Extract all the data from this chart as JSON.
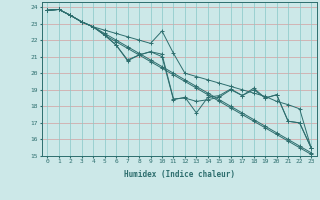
{
  "xlabel": "Humidex (Indice chaleur)",
  "xlim": [
    -0.5,
    23.5
  ],
  "ylim": [
    15,
    24.3
  ],
  "yticks": [
    15,
    16,
    17,
    18,
    19,
    20,
    21,
    22,
    23,
    24
  ],
  "xticks": [
    0,
    1,
    2,
    3,
    4,
    5,
    6,
    7,
    8,
    9,
    10,
    11,
    12,
    13,
    14,
    15,
    16,
    17,
    18,
    19,
    20,
    21,
    22,
    23
  ],
  "bg_color": "#cce8e8",
  "line_color": "#2d6e6e",
  "grid_color_h": "#d4a0a0",
  "grid_color_v": "#88c8c8",
  "series": [
    {
      "x": [
        0,
        1,
        2,
        3,
        4,
        5,
        6,
        7,
        8,
        9,
        10,
        11,
        12,
        13,
        14,
        15,
        16,
        17,
        18,
        19,
        20,
        21,
        22,
        23
      ],
      "y": [
        23.8,
        23.85,
        23.5,
        23.1,
        22.8,
        22.6,
        22.4,
        22.2,
        22.0,
        21.8,
        22.55,
        21.2,
        20.0,
        19.8,
        19.6,
        19.4,
        19.2,
        19.0,
        18.8,
        18.6,
        18.3,
        18.1,
        17.85,
        15.5
      ]
    },
    {
      "x": [
        0,
        1,
        2,
        3,
        4,
        5,
        6,
        7,
        8,
        9,
        10,
        11,
        12,
        13,
        14,
        15,
        16,
        17,
        18,
        19,
        20,
        21,
        22,
        23
      ],
      "y": [
        23.8,
        23.85,
        23.5,
        23.1,
        22.8,
        22.3,
        21.7,
        20.8,
        21.1,
        21.3,
        21.15,
        18.45,
        18.5,
        18.3,
        18.4,
        18.55,
        19.0,
        18.65,
        19.0,
        18.5,
        18.7,
        17.1,
        17.0,
        15.5
      ]
    },
    {
      "x": [
        0,
        1,
        2,
        3,
        4,
        5,
        6,
        7,
        8,
        9,
        10,
        11,
        12,
        13,
        14,
        15,
        16,
        17,
        18,
        19,
        20,
        21,
        22,
        23
      ],
      "y": [
        23.8,
        23.85,
        23.5,
        23.1,
        22.8,
        22.3,
        21.7,
        20.75,
        21.1,
        21.3,
        21.0,
        18.4,
        18.55,
        17.6,
        18.55,
        18.65,
        19.05,
        18.65,
        19.1,
        18.5,
        18.7,
        17.1,
        17.0,
        15.5
      ]
    },
    {
      "x": [
        0,
        1,
        2,
        3,
        4,
        5,
        6,
        7,
        8,
        9,
        10,
        11,
        12,
        13,
        14,
        15,
        16,
        17,
        18,
        19,
        20,
        21,
        22,
        23
      ],
      "y": [
        23.8,
        23.85,
        23.5,
        23.1,
        22.8,
        22.3,
        21.9,
        21.5,
        21.1,
        20.7,
        20.3,
        19.9,
        19.5,
        19.1,
        18.7,
        18.3,
        17.9,
        17.5,
        17.1,
        16.7,
        16.3,
        15.9,
        15.5,
        15.1
      ]
    },
    {
      "x": [
        0,
        1,
        2,
        3,
        4,
        5,
        6,
        7,
        8,
        9,
        10,
        11,
        12,
        13,
        14,
        15,
        16,
        17,
        18,
        19,
        20,
        21,
        22,
        23
      ],
      "y": [
        23.8,
        23.85,
        23.5,
        23.1,
        22.8,
        22.4,
        22.0,
        21.6,
        21.2,
        20.8,
        20.4,
        20.0,
        19.6,
        19.2,
        18.8,
        18.4,
        18.0,
        17.6,
        17.2,
        16.8,
        16.4,
        16.0,
        15.6,
        15.2
      ]
    }
  ]
}
